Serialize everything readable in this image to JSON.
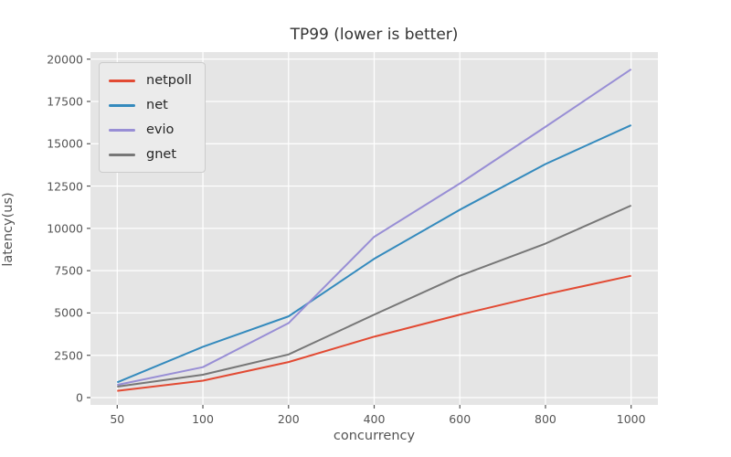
{
  "figure": {
    "title": "TP99 (lower is better)",
    "xlabel": "concurrency",
    "ylabel": "latency(us)"
  },
  "chart_data": {
    "type": "line",
    "title": "TP99 (lower is better)",
    "xlabel": "concurrency",
    "ylabel": "latency(us)",
    "categories": [
      "50",
      "100",
      "200",
      "400",
      "600",
      "800",
      "1000"
    ],
    "series": [
      {
        "name": "netpoll",
        "color": "#E24A33",
        "values": [
          400,
          1000,
          2100,
          3600,
          4900,
          6100,
          7200
        ]
      },
      {
        "name": "net",
        "color": "#348ABD",
        "values": [
          900,
          3000,
          4800,
          8200,
          11100,
          13800,
          16100
        ]
      },
      {
        "name": "evio",
        "color": "#988ED5",
        "values": [
          750,
          1800,
          4400,
          9500,
          12650,
          16000,
          19400
        ]
      },
      {
        "name": "gnet",
        "color": "#777777",
        "values": [
          650,
          1350,
          2550,
          4900,
          7200,
          9100,
          11350
        ]
      }
    ],
    "ylim": [
      0,
      20000
    ],
    "yticks": [
      0,
      2500,
      5000,
      7500,
      10000,
      12500,
      15000,
      17500,
      20000
    ],
    "grid": true,
    "legend_position": "upper left",
    "style": {
      "plot_bg": "#E5E5E5",
      "grid_color": "#FFFFFF",
      "tick_color": "#555555",
      "line_width": 2,
      "legend_bg": "#EBEBEB",
      "legend_border": "#CCCCCC"
    }
  }
}
